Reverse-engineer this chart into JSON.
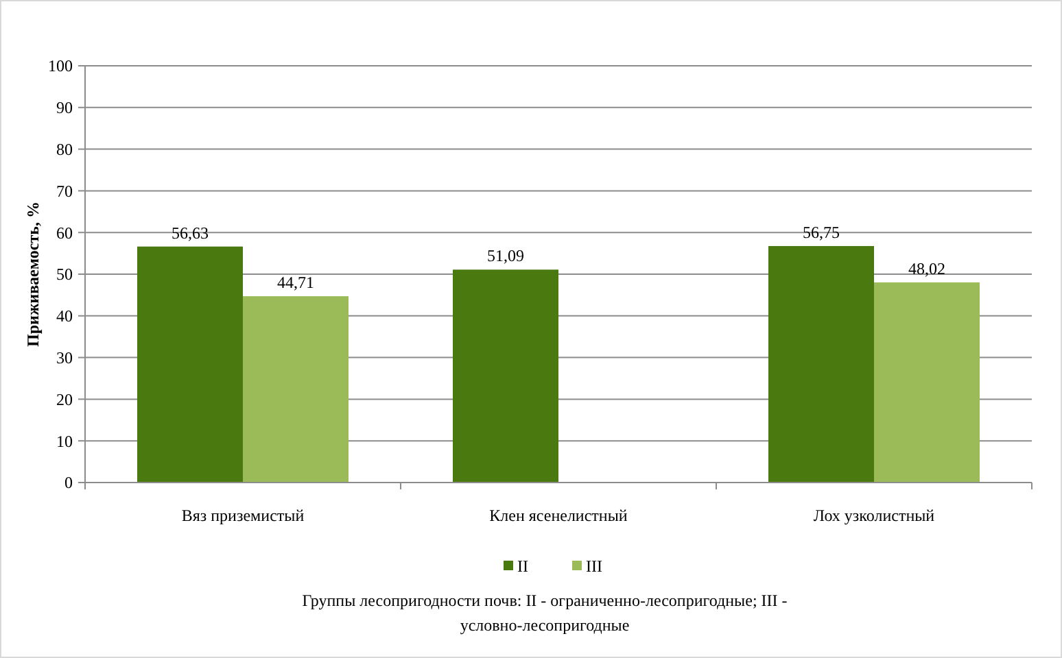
{
  "chart_data": {
    "type": "bar",
    "ylabel": "Приживаемость, %",
    "categories": [
      "Вяз приземистый",
      "Клен ясенелистный",
      "Лох узколистный"
    ],
    "series": [
      {
        "name": "II",
        "color": "#4a7a0f",
        "values": [
          56.63,
          51.09,
          56.75
        ],
        "value_labels": [
          "56,63",
          "51,09",
          "56,75"
        ]
      },
      {
        "name": "III",
        "color": "#9bbb59",
        "values": [
          44.71,
          null,
          48.02
        ],
        "value_labels": [
          "44,71",
          null,
          "48,02"
        ]
      }
    ],
    "ylim": [
      0,
      100
    ],
    "yticks": [
      0,
      10,
      20,
      30,
      40,
      50,
      60,
      70,
      80,
      90,
      100
    ],
    "grid": "y",
    "legend": "bottom",
    "annotations": [
      "Группы лесопригодности почв: II - ограниченно-лесопригодные; III - условно-лесопригодные"
    ]
  }
}
